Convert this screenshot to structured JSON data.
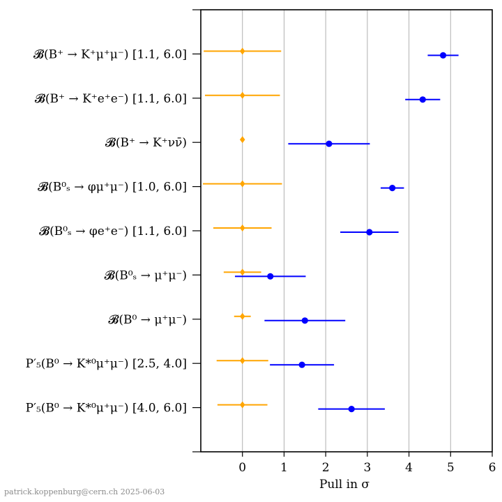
{
  "chart_data": {
    "type": "scatter",
    "xlabel": "Pull in σ",
    "xlim": [
      -1,
      6
    ],
    "xticks": [
      0,
      1,
      2,
      3,
      4,
      5,
      6
    ],
    "grid": "vertical",
    "categories": [
      "𝓑(B⁺ → K⁺μ⁺μ⁻) [1.1, 6.0]",
      "𝓑(B⁺ → K⁺e⁺e⁻) [1.1, 6.0]",
      "𝓑(B⁺ → K⁺νν̄)",
      "𝓑(B⁰ₛ → φμ⁺μ⁻) [1.0, 6.0]",
      "𝓑(B⁰ₛ → φe⁺e⁻) [1.1, 6.0]",
      "𝓑(B⁰ₛ → μ⁺μ⁻)",
      "𝓑(B⁰ → μ⁺μ⁻)",
      "P′₅(B⁰ → K*⁰μ⁺μ⁻) [2.5, 4.0]",
      "P′₅(B⁰ → K*⁰μ⁺μ⁻) [4.0, 6.0]"
    ],
    "series": [
      {
        "marker": "diamond",
        "color": "#ffa500",
        "points": [
          {
            "x": 0,
            "xerr_low": 0.93,
            "xerr_high": 0.93
          },
          {
            "x": 0,
            "xerr_low": 0.9,
            "xerr_high": 0.9
          },
          {
            "x": 0,
            "xerr_low": 0.05,
            "xerr_high": 0.05
          },
          {
            "x": 0,
            "xerr_low": 0.95,
            "xerr_high": 0.95
          },
          {
            "x": 0,
            "xerr_low": 0.7,
            "xerr_high": 0.7
          },
          {
            "x": 0,
            "xerr_low": 0.45,
            "xerr_high": 0.45
          },
          {
            "x": 0,
            "xerr_low": 0.2,
            "xerr_high": 0.2
          },
          {
            "x": 0,
            "xerr_low": 0.62,
            "xerr_high": 0.62
          },
          {
            "x": 0,
            "xerr_low": 0.6,
            "xerr_high": 0.6
          }
        ]
      },
      {
        "marker": "circle",
        "color": "#0000ff",
        "points": [
          {
            "x": 4.82,
            "xerr_low": 0.37,
            "xerr_high": 0.37
          },
          {
            "x": 4.33,
            "xerr_low": 0.42,
            "xerr_high": 0.42
          },
          {
            "x": 2.08,
            "xerr_low": 0.98,
            "xerr_high": 0.98
          },
          {
            "x": 3.6,
            "xerr_low": 0.28,
            "xerr_high": 0.28
          },
          {
            "x": 3.05,
            "xerr_low": 0.7,
            "xerr_high": 0.7
          },
          {
            "x": 0.67,
            "xerr_low": 0.85,
            "xerr_high": 0.85
          },
          {
            "x": 1.5,
            "xerr_low": 0.97,
            "xerr_high": 0.97
          },
          {
            "x": 1.43,
            "xerr_low": 0.77,
            "xerr_high": 0.77
          },
          {
            "x": 2.62,
            "xerr_low": 0.8,
            "xerr_high": 0.8
          }
        ]
      }
    ]
  },
  "footer": {
    "author": "patrick.koppenburg@cern.ch",
    "date": "2025-06-03"
  }
}
